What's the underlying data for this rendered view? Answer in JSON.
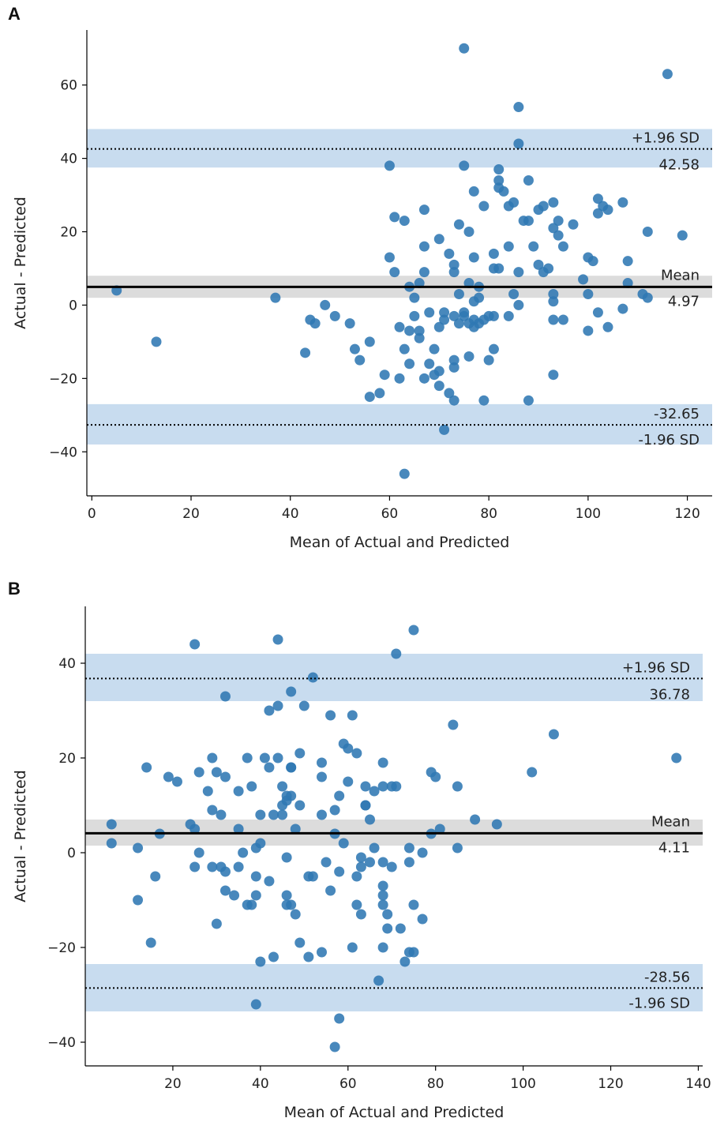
{
  "panels": [
    {
      "label": "A"
    },
    {
      "label": "B"
    }
  ],
  "colors": {
    "point": "#2f78b3",
    "loa_band": "#c8dcef",
    "mean_band": "#dcdcdc",
    "line": "#000000"
  },
  "chart_data": [
    {
      "type": "scatter",
      "panel": "A",
      "xlabel": "Mean of Actual and Predicted",
      "ylabel": "Actual - Predicted",
      "xlim": [
        -1,
        125
      ],
      "ylim": [
        -52,
        75
      ],
      "xticks": [
        0,
        20,
        40,
        60,
        80,
        100,
        120
      ],
      "yticks": [
        -40,
        -20,
        0,
        20,
        40,
        60
      ],
      "ytick_labels": [
        "−40",
        "−20",
        "0",
        "20",
        "40",
        "60"
      ],
      "mean": 4.97,
      "upper_loa": 42.58,
      "lower_loa": -32.65,
      "mean_band": [
        2,
        8
      ],
      "upper_band": [
        37.5,
        48
      ],
      "lower_band": [
        -38,
        -27
      ],
      "annotations": {
        "upper_label": "+1.96 SD",
        "upper_value": "42.58",
        "mean_label": "Mean",
        "mean_value": "4.97",
        "lower_value": "-32.65",
        "lower_label": "-1.96 SD"
      },
      "points": [
        [
          5,
          4
        ],
        [
          13,
          -10
        ],
        [
          37,
          2
        ],
        [
          43,
          -13
        ],
        [
          44,
          -4
        ],
        [
          45,
          -5
        ],
        [
          47,
          0
        ],
        [
          49,
          -3
        ],
        [
          52,
          -5
        ],
        [
          53,
          -12
        ],
        [
          54,
          -15
        ],
        [
          56,
          -10
        ],
        [
          56,
          -25
        ],
        [
          58,
          -24
        ],
        [
          59,
          -19
        ],
        [
          60,
          38
        ],
        [
          60,
          13
        ],
        [
          61,
          24
        ],
        [
          61,
          9
        ],
        [
          62,
          -6
        ],
        [
          62,
          -20
        ],
        [
          63,
          23
        ],
        [
          63,
          -12
        ],
        [
          63,
          -46
        ],
        [
          64,
          5
        ],
        [
          64,
          -7
        ],
        [
          64,
          -16
        ],
        [
          65,
          -3
        ],
        [
          65,
          2
        ],
        [
          66,
          6
        ],
        [
          66,
          -7
        ],
        [
          66,
          -9
        ],
        [
          67,
          9
        ],
        [
          67,
          26
        ],
        [
          67,
          16
        ],
        [
          67,
          -20
        ],
        [
          68,
          -2
        ],
        [
          68,
          -16
        ],
        [
          69,
          -12
        ],
        [
          69,
          -19
        ],
        [
          70,
          18
        ],
        [
          70,
          -6
        ],
        [
          70,
          -22
        ],
        [
          70,
          -18
        ],
        [
          71,
          -2
        ],
        [
          71,
          -4
        ],
        [
          71,
          -34
        ],
        [
          72,
          14
        ],
        [
          72,
          -24
        ],
        [
          73,
          11
        ],
        [
          73,
          9
        ],
        [
          73,
          -26
        ],
        [
          73,
          -3
        ],
        [
          73,
          -15
        ],
        [
          73,
          -17
        ],
        [
          74,
          3
        ],
        [
          74,
          -5
        ],
        [
          74,
          22
        ],
        [
          75,
          -2
        ],
        [
          75,
          -3
        ],
        [
          75,
          70
        ],
        [
          75,
          38
        ],
        [
          76,
          -5
        ],
        [
          76,
          20
        ],
        [
          76,
          6
        ],
        [
          76,
          -14
        ],
        [
          77,
          13
        ],
        [
          77,
          31
        ],
        [
          77,
          1
        ],
        [
          77,
          -6
        ],
        [
          77,
          -4
        ],
        [
          78,
          2
        ],
        [
          78,
          -5
        ],
        [
          78,
          5
        ],
        [
          79,
          27
        ],
        [
          79,
          -4
        ],
        [
          79,
          -26
        ],
        [
          80,
          -3
        ],
        [
          80,
          -15
        ],
        [
          81,
          -3
        ],
        [
          81,
          14
        ],
        [
          81,
          10
        ],
        [
          81,
          -12
        ],
        [
          82,
          37
        ],
        [
          82,
          34
        ],
        [
          82,
          32
        ],
        [
          82,
          10
        ],
        [
          83,
          31
        ],
        [
          84,
          16
        ],
        [
          84,
          27
        ],
        [
          84,
          -3
        ],
        [
          85,
          3
        ],
        [
          85,
          28
        ],
        [
          86,
          54
        ],
        [
          86,
          44
        ],
        [
          86,
          9
        ],
        [
          86,
          0
        ],
        [
          87,
          23
        ],
        [
          88,
          34
        ],
        [
          88,
          23
        ],
        [
          88,
          -26
        ],
        [
          89,
          16
        ],
        [
          90,
          11
        ],
        [
          90,
          26
        ],
        [
          91,
          27
        ],
        [
          91,
          9
        ],
        [
          92,
          10
        ],
        [
          93,
          28
        ],
        [
          93,
          21
        ],
        [
          93,
          1
        ],
        [
          93,
          3
        ],
        [
          93,
          -19
        ],
        [
          93,
          -4
        ],
        [
          94,
          23
        ],
        [
          94,
          19
        ],
        [
          95,
          -4
        ],
        [
          95,
          16
        ],
        [
          97,
          22
        ],
        [
          99,
          7
        ],
        [
          100,
          3
        ],
        [
          100,
          13
        ],
        [
          100,
          -7
        ],
        [
          101,
          12
        ],
        [
          102,
          -2
        ],
        [
          102,
          25
        ],
        [
          102,
          29
        ],
        [
          103,
          27
        ],
        [
          104,
          -6
        ],
        [
          104,
          26
        ],
        [
          107,
          28
        ],
        [
          107,
          -1
        ],
        [
          108,
          6
        ],
        [
          108,
          12
        ],
        [
          111,
          3
        ],
        [
          112,
          2
        ],
        [
          112,
          20
        ],
        [
          116,
          63
        ],
        [
          119,
          19
        ]
      ]
    },
    {
      "type": "scatter",
      "panel": "B",
      "xlabel": "Mean of Actual and Predicted",
      "ylabel": "Actual - Predicted",
      "xlim": [
        0,
        141
      ],
      "ylim": [
        -45,
        52
      ],
      "xticks": [
        20,
        40,
        60,
        80,
        100,
        120,
        140
      ],
      "yticks": [
        -40,
        -20,
        0,
        20,
        40
      ],
      "ytick_labels": [
        "−40",
        "−20",
        "0",
        "20",
        "40"
      ],
      "mean": 4.11,
      "upper_loa": 36.78,
      "lower_loa": -28.56,
      "mean_band": [
        1.5,
        7
      ],
      "upper_band": [
        32,
        42
      ],
      "lower_band": [
        -33.5,
        -23.5
      ],
      "annotations": {
        "upper_label": "+1.96 SD",
        "upper_value": "36.78",
        "mean_label": "Mean",
        "mean_value": "4.11",
        "lower_value": "-28.56",
        "lower_label": "-1.96 SD"
      },
      "points": [
        [
          6,
          6
        ],
        [
          6,
          2
        ],
        [
          12,
          -10
        ],
        [
          12,
          1
        ],
        [
          14,
          18
        ],
        [
          15,
          -19
        ],
        [
          16,
          -5
        ],
        [
          17,
          4
        ],
        [
          19,
          16
        ],
        [
          21,
          15
        ],
        [
          24,
          6
        ],
        [
          25,
          44
        ],
        [
          25,
          5
        ],
        [
          25,
          -3
        ],
        [
          26,
          0
        ],
        [
          26,
          17
        ],
        [
          28,
          13
        ],
        [
          29,
          20
        ],
        [
          29,
          9
        ],
        [
          29,
          -3
        ],
        [
          30,
          17
        ],
        [
          30,
          -15
        ],
        [
          31,
          8
        ],
        [
          31,
          -3
        ],
        [
          32,
          -4
        ],
        [
          32,
          -8
        ],
        [
          32,
          16
        ],
        [
          32,
          33
        ],
        [
          34,
          -9
        ],
        [
          35,
          13
        ],
        [
          35,
          5
        ],
        [
          35,
          -3
        ],
        [
          36,
          0
        ],
        [
          37,
          20
        ],
        [
          37,
          -11
        ],
        [
          38,
          14
        ],
        [
          38,
          -11
        ],
        [
          39,
          -32
        ],
        [
          39,
          1
        ],
        [
          39,
          -5
        ],
        [
          39,
          -9
        ],
        [
          40,
          8
        ],
        [
          40,
          2
        ],
        [
          40,
          -23
        ],
        [
          41,
          20
        ],
        [
          42,
          18
        ],
        [
          42,
          30
        ],
        [
          42,
          -6
        ],
        [
          43,
          8
        ],
        [
          43,
          -22
        ],
        [
          44,
          31
        ],
        [
          44,
          20
        ],
        [
          44,
          45
        ],
        [
          45,
          8
        ],
        [
          45,
          10
        ],
        [
          45,
          14
        ],
        [
          46,
          11
        ],
        [
          46,
          12
        ],
        [
          46,
          -1
        ],
        [
          46,
          -9
        ],
        [
          46,
          -11
        ],
        [
          47,
          34
        ],
        [
          47,
          18
        ],
        [
          47,
          18
        ],
        [
          47,
          12
        ],
        [
          47,
          -11
        ],
        [
          48,
          5
        ],
        [
          48,
          -13
        ],
        [
          49,
          10
        ],
        [
          49,
          21
        ],
        [
          49,
          -19
        ],
        [
          50,
          31
        ],
        [
          51,
          -22
        ],
        [
          51,
          -5
        ],
        [
          52,
          37
        ],
        [
          52,
          -5
        ],
        [
          54,
          16
        ],
        [
          54,
          8
        ],
        [
          54,
          19
        ],
        [
          54,
          -21
        ],
        [
          55,
          -2
        ],
        [
          56,
          29
        ],
        [
          56,
          -8
        ],
        [
          57,
          9
        ],
        [
          57,
          4
        ],
        [
          58,
          12
        ],
        [
          58,
          -4
        ],
        [
          58,
          -35
        ],
        [
          57,
          -41
        ],
        [
          59,
          23
        ],
        [
          59,
          2
        ],
        [
          60,
          15
        ],
        [
          60,
          22
        ],
        [
          61,
          29
        ],
        [
          61,
          -20
        ],
        [
          62,
          21
        ],
        [
          62,
          -5
        ],
        [
          62,
          -11
        ],
        [
          63,
          -1
        ],
        [
          63,
          -3
        ],
        [
          63,
          -13
        ],
        [
          64,
          10
        ],
        [
          64,
          14
        ],
        [
          64,
          10
        ],
        [
          65,
          7
        ],
        [
          65,
          -2
        ],
        [
          66,
          1
        ],
        [
          66,
          13
        ],
        [
          67,
          -27
        ],
        [
          68,
          14
        ],
        [
          68,
          19
        ],
        [
          68,
          -2
        ],
        [
          68,
          -7
        ],
        [
          68,
          -9
        ],
        [
          68,
          -11
        ],
        [
          68,
          -20
        ],
        [
          69,
          -13
        ],
        [
          69,
          -16
        ],
        [
          70,
          -3
        ],
        [
          70,
          14
        ],
        [
          71,
          42
        ],
        [
          71,
          14
        ],
        [
          72,
          -16
        ],
        [
          73,
          -23
        ],
        [
          74,
          -21
        ],
        [
          74,
          1
        ],
        [
          74,
          -2
        ],
        [
          75,
          -11
        ],
        [
          75,
          47
        ],
        [
          75,
          -21
        ],
        [
          77,
          -14
        ],
        [
          77,
          0
        ],
        [
          79,
          4
        ],
        [
          79,
          17
        ],
        [
          80,
          16
        ],
        [
          81,
          5
        ],
        [
          84,
          27
        ],
        [
          85,
          14
        ],
        [
          85,
          1
        ],
        [
          89,
          7
        ],
        [
          94,
          6
        ],
        [
          102,
          17
        ],
        [
          107,
          25
        ],
        [
          135,
          20
        ]
      ]
    }
  ]
}
